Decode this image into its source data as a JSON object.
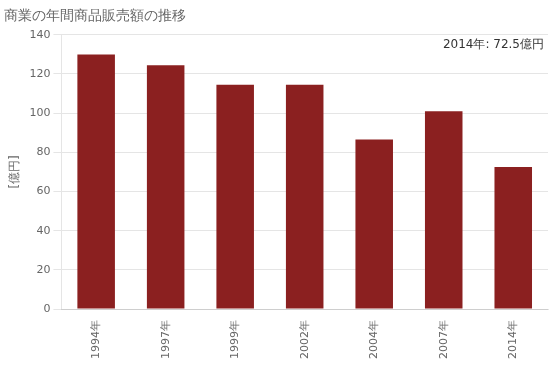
{
  "chart_data": {
    "type": "bar",
    "title": "商業の年間商品販売額の推移",
    "ylabel": "[億円]",
    "annotation": "2014年: 72.5億円",
    "categories": [
      "1994年",
      "1997年",
      "1999年",
      "2002年",
      "2004年",
      "2007年",
      "2014年"
    ],
    "values": [
      130.0,
      124.5,
      114.5,
      114.5,
      86.5,
      101.0,
      72.5
    ],
    "color": "#8B2020",
    "ylim": [
      0,
      140
    ],
    "yticks": [
      0,
      20,
      40,
      60,
      80,
      100,
      120,
      140
    ],
    "grid": true
  }
}
